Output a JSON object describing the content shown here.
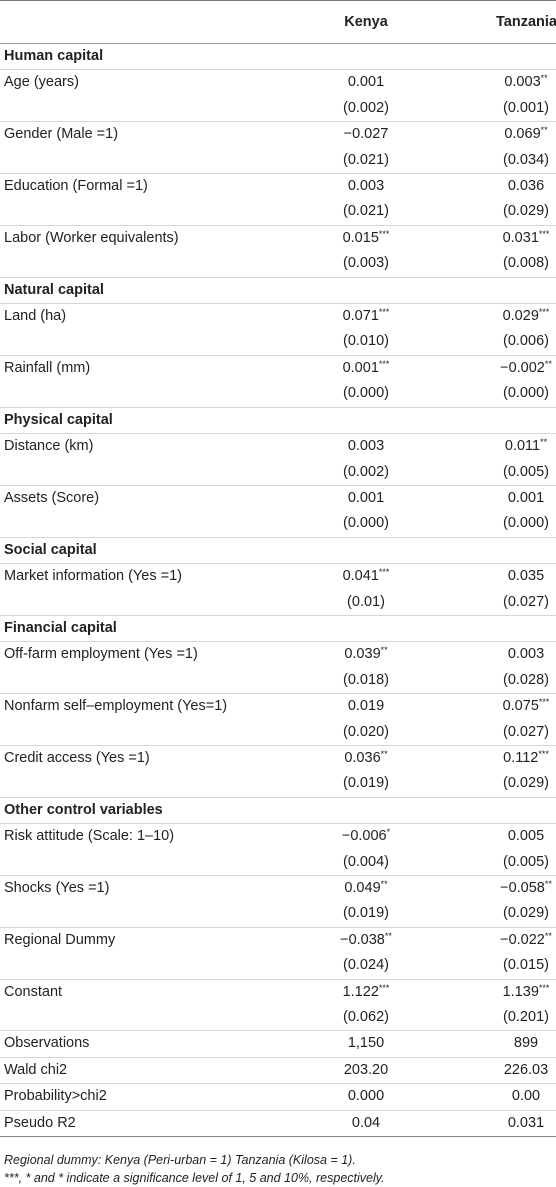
{
  "header": {
    "col1": "",
    "col2": "Kenya",
    "col3": "Tanzania"
  },
  "rows": [
    {
      "type": "section",
      "label": "Human capital"
    },
    {
      "type": "coef",
      "label": "Age (years)",
      "k": "0.001",
      "ks": "",
      "t": "0.003",
      "ts": "**"
    },
    {
      "type": "se",
      "k": "(0.002)",
      "t": "(0.001)"
    },
    {
      "type": "coef",
      "label": "Gender (Male =1)",
      "k": "−0.027",
      "ks": "",
      "t": "0.069",
      "ts": "**"
    },
    {
      "type": "se",
      "k": "(0.021)",
      "t": "(0.034)"
    },
    {
      "type": "coef",
      "label": "Education (Formal =1)",
      "k": "0.003",
      "ks": "",
      "t": "0.036",
      "ts": ""
    },
    {
      "type": "se",
      "k": "(0.021)",
      "t": "(0.029)"
    },
    {
      "type": "coef",
      "label": "Labor (Worker equivalents)",
      "k": "0.015",
      "ks": "***",
      "t": "0.031",
      "ts": "***"
    },
    {
      "type": "se",
      "k": "(0.003)",
      "t": "(0.008)"
    },
    {
      "type": "section",
      "label": "Natural capital"
    },
    {
      "type": "coef",
      "label": "Land (ha)",
      "k": "0.071",
      "ks": "***",
      "t": "0.029",
      "ts": "***"
    },
    {
      "type": "se",
      "k": "(0.010)",
      "t": "(0.006)"
    },
    {
      "type": "coef",
      "label": "Rainfall (mm)",
      "k": "0.001",
      "ks": "***",
      "t": "−0.002",
      "ts": "**"
    },
    {
      "type": "se",
      "k": "(0.000)",
      "t": "(0.000)"
    },
    {
      "type": "section",
      "label": "Physical capital"
    },
    {
      "type": "coef",
      "label": "Distance (km)",
      "k": "0.003",
      "ks": "",
      "t": "0.011",
      "ts": "**"
    },
    {
      "type": "se",
      "k": "(0.002)",
      "t": "(0.005)"
    },
    {
      "type": "coef",
      "label": "Assets (Score)",
      "k": "0.001",
      "ks": "",
      "t": "0.001",
      "ts": ""
    },
    {
      "type": "se",
      "k": "(0.000)",
      "t": "(0.000)"
    },
    {
      "type": "section",
      "label": "Social capital"
    },
    {
      "type": "coef",
      "label": "Market information (Yes =1)",
      "k": "0.041",
      "ks": "***",
      "t": "0.035",
      "ts": ""
    },
    {
      "type": "se",
      "k": "(0.01)",
      "t": "(0.027)"
    },
    {
      "type": "section",
      "label": "Financial capital"
    },
    {
      "type": "coef",
      "label": "Off-farm employment (Yes =1)",
      "k": "0.039",
      "ks": "**",
      "t": "0.003",
      "ts": ""
    },
    {
      "type": "se",
      "k": "(0.018)",
      "t": "(0.028)"
    },
    {
      "type": "coef",
      "label": "Nonfarm self–employment (Yes=1)",
      "k": "0.019",
      "ks": "",
      "t": "0.075",
      "ts": "***"
    },
    {
      "type": "se",
      "k": "(0.020)",
      "t": "(0.027)"
    },
    {
      "type": "coef",
      "label": "Credit access (Yes =1)",
      "k": "0.036",
      "ks": "**",
      "t": "0.112",
      "ts": "***"
    },
    {
      "type": "se",
      "k": "(0.019)",
      "t": "(0.029)"
    },
    {
      "type": "section",
      "label": "Other control variables"
    },
    {
      "type": "coef",
      "label": "Risk attitude (Scale: 1–10)",
      "k": "−0.006",
      "ks": "*",
      "t": "0.005",
      "ts": ""
    },
    {
      "type": "se",
      "k": "(0.004)",
      "t": "(0.005)"
    },
    {
      "type": "coef",
      "label": "Shocks (Yes =1)",
      "k": "0.049",
      "ks": "**",
      "t": "−0.058",
      "ts": "**"
    },
    {
      "type": "se",
      "k": "(0.019)",
      "t": "(0.029)"
    },
    {
      "type": "coef",
      "label": "Regional Dummy",
      "k": "−0.038",
      "ks": "**",
      "t": "−0.022",
      "ts": "**"
    },
    {
      "type": "se",
      "k": "(0.024)",
      "t": "(0.015)"
    },
    {
      "type": "coef",
      "label": "Constant",
      "k": "1.122",
      "ks": "***",
      "t": "1.139",
      "ts": "***"
    },
    {
      "type": "se",
      "k": "(0.062)",
      "t": "(0.201)"
    },
    {
      "type": "stat",
      "label": "Observations",
      "k": "1,150",
      "ks": "",
      "t": "899",
      "ts": ""
    },
    {
      "type": "stat",
      "label": "Wald chi2",
      "k": "203.20",
      "ks": "",
      "t": "226.03",
      "ts": ""
    },
    {
      "type": "stat",
      "label": "Probability>chi2",
      "k": "0.000",
      "ks": "",
      "t": "0.00",
      "ts": ""
    },
    {
      "type": "stat",
      "label": "Pseudo R2",
      "k": "0.04",
      "ks": "",
      "t": "0.031",
      "ts": ""
    }
  ],
  "notes": [
    "Regional dummy: Kenya (Peri-urban = 1) Tanzania (Kilosa = 1).",
    "***, * and * indicate a significance level of 1, 5 and 10%, respectively."
  ]
}
